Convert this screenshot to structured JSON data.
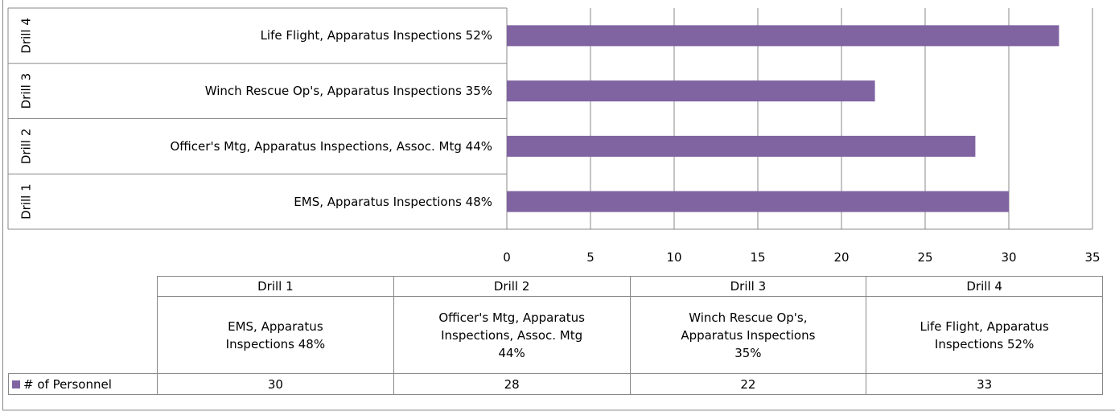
{
  "chart_data": {
    "type": "bar",
    "orientation": "horizontal",
    "categories": [
      "Drill 1",
      "Drill 2",
      "Drill 3",
      "Drill 4"
    ],
    "subcategories": [
      "EMS, Apparatus Inspections 48%",
      "Officer's Mtg, Apparatus Inspections, Assoc. Mtg 44%",
      "Winch Rescue Op's, Apparatus Inspections 35%",
      "Life Flight, Apparatus Inspections 52%"
    ],
    "series": [
      {
        "name": "# of Personnel",
        "color": "#8064a2",
        "values": [
          30,
          28,
          22,
          33
        ]
      }
    ],
    "xlim": [
      0,
      35
    ],
    "xticks": [
      0,
      5,
      10,
      15,
      20,
      25,
      30,
      35
    ],
    "grid": true,
    "data_table": true
  }
}
